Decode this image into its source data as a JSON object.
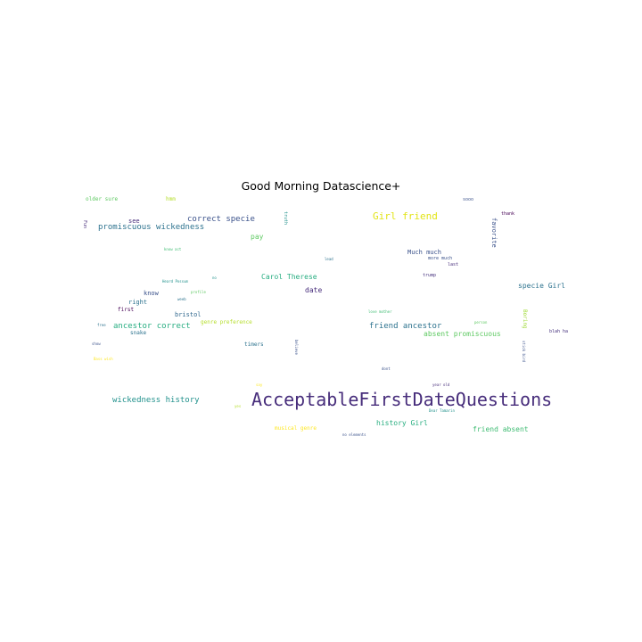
{
  "title": "Good Morning Datascience+",
  "words": [
    {
      "text": "AcceptableFirstDateQuestions",
      "color": "#472d7b"
    },
    {
      "text": "Girl friend",
      "color": "#e2e418"
    },
    {
      "text": "correct specie",
      "color": "#3b528b"
    },
    {
      "text": "promiscuous wickedness",
      "color": "#2c728e"
    },
    {
      "text": "wickedness history",
      "color": "#21918c"
    },
    {
      "text": "ancestor correct",
      "color": "#27ad81"
    },
    {
      "text": "friend ancestor",
      "color": "#2c728e"
    },
    {
      "text": "absent promiscuous",
      "color": "#5ec962"
    },
    {
      "text": "history Girl",
      "color": "#28ae80"
    },
    {
      "text": "friend absent",
      "color": "#3fbc73"
    },
    {
      "text": "Carol Therese",
      "color": "#27ad81"
    },
    {
      "text": "specie Girl",
      "color": "#2c728e"
    },
    {
      "text": "Much much",
      "color": "#3b528b"
    },
    {
      "text": "date",
      "color": "#472d7b"
    },
    {
      "text": "pay",
      "color": "#5ec962"
    },
    {
      "text": "favorite",
      "color": "#3b528b"
    },
    {
      "text": "musical genre",
      "color": "#fde725"
    },
    {
      "text": "genre preference",
      "color": "#b5de2b"
    },
    {
      "text": "older sure",
      "color": "#5ec962"
    },
    {
      "text": "hmm",
      "color": "#b5de2b"
    },
    {
      "text": "see",
      "color": "#472d7b"
    },
    {
      "text": "know",
      "color": "#3b528b"
    },
    {
      "text": "right",
      "color": "#2c728e"
    },
    {
      "text": "first",
      "color": "#440154"
    },
    {
      "text": "bristol",
      "color": "#31688e"
    },
    {
      "text": "snake",
      "color": "#2c728e"
    },
    {
      "text": "timers",
      "color": "#2c728e"
    },
    {
      "text": "more much",
      "color": "#3b528b"
    },
    {
      "text": "last",
      "color": "#472d7b"
    },
    {
      "text": "trump",
      "color": "#46327e"
    },
    {
      "text": "thank",
      "color": "#440154"
    },
    {
      "text": "sooo",
      "color": "#3b528b"
    },
    {
      "text": "Boring",
      "color": "#a0da39"
    },
    {
      "text": "blah ha",
      "color": "#46327e"
    },
    {
      "text": "truth",
      "color": "#21918c"
    },
    {
      "text": "person",
      "color": "#5ec962"
    },
    {
      "text": "love mother",
      "color": "#3fbc73"
    },
    {
      "text": "believe",
      "color": "#3b528b"
    },
    {
      "text": "Fun",
      "color": "#472d7b"
    },
    {
      "text": "know act",
      "color": "#3fbc73"
    },
    {
      "text": "lead",
      "color": "#2c728e"
    },
    {
      "text": "Heard Possum",
      "color": "#21918c"
    },
    {
      "text": "profile",
      "color": "#5ec962"
    },
    {
      "text": "weeb",
      "color": "#2c728e"
    },
    {
      "text": "no",
      "color": "#21918c"
    },
    {
      "text": "free",
      "color": "#2c728e"
    },
    {
      "text": "show",
      "color": "#3b528b"
    },
    {
      "text": "Bass wish",
      "color": "#fde725"
    },
    {
      "text": "dont",
      "color": "#3b528b"
    },
    {
      "text": "year old",
      "color": "#472d7b"
    },
    {
      "text": "Dear Tamarin",
      "color": "#21918c"
    },
    {
      "text": "no elements",
      "color": "#3b528b"
    },
    {
      "text": "say",
      "color": "#fde725"
    },
    {
      "text": "yes",
      "color": "#b5de2b"
    },
    {
      "text": "stick bird",
      "color": "#3b528b"
    }
  ]
}
